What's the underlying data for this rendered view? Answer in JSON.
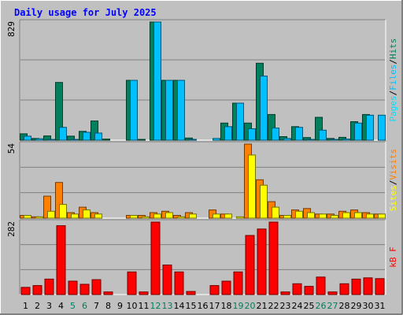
{
  "chart_data": {
    "type": "bar",
    "title": "Daily usage for July 2025",
    "categories": [
      "1",
      "2",
      "3",
      "4",
      "5",
      "6",
      "7",
      "8",
      "9",
      "10",
      "11",
      "12",
      "13",
      "14",
      "15",
      "16",
      "17",
      "18",
      "19",
      "20",
      "21",
      "22",
      "23",
      "24",
      "25",
      "26",
      "27",
      "28",
      "29",
      "30",
      "31"
    ],
    "weekend_days": [
      "5",
      "6",
      "12",
      "13",
      "19",
      "20",
      "26",
      "27"
    ],
    "panels": [
      {
        "id": "top",
        "max_label": "829",
        "ylim": [
          0,
          829
        ],
        "grid": true,
        "legend_vertical": [
          "Pages",
          "/",
          "Files",
          "/",
          "Hits"
        ],
        "series": [
          {
            "name": "Hits",
            "color": "#00805c",
            "values": [
              45,
              12,
              30,
              405,
              28,
              62,
              135,
              8,
              0,
              420,
              5,
              829,
              420,
              420,
              15,
              0,
              0,
              120,
              260,
              120,
              540,
              180,
              25,
              95,
              18,
              160,
              12,
              20,
              130,
              180,
              0
            ]
          },
          {
            "name": "Files",
            "color": "#00c0ff",
            "values": [
              28,
              10,
              5,
              90,
              5,
              55,
              50,
              0,
              0,
              420,
              0,
              829,
              420,
              420,
              5,
              0,
              12,
              95,
              260,
              80,
              450,
              85,
              12,
              90,
              5,
              70,
              5,
              8,
              120,
              175,
              175
            ]
          },
          {
            "name": "Pages",
            "color": "#00e0ff",
            "values": [
              0,
              0,
              0,
              0,
              0,
              0,
              0,
              0,
              0,
              0,
              0,
              0,
              0,
              0,
              0,
              0,
              0,
              0,
              0,
              0,
              0,
              0,
              0,
              0,
              0,
              0,
              0,
              0,
              0,
              0,
              0
            ]
          }
        ]
      },
      {
        "id": "mid",
        "max_label": "54",
        "ylim": [
          0,
          54
        ],
        "grid": true,
        "legend_vertical": [
          "Sites",
          "/",
          "Visits"
        ],
        "series": [
          {
            "name": "Visits",
            "color": "#ff8000",
            "values": [
              2,
              1,
              16,
              26,
              4,
              8,
              4,
              0,
              0,
              2,
              2,
              4,
              5,
              2,
              4,
              0,
              6,
              3,
              0,
              54,
              28,
              12,
              2,
              6,
              7,
              3,
              3,
              5,
              6,
              4,
              3
            ]
          },
          {
            "name": "Sites",
            "color": "#ffff00",
            "values": [
              2,
              1,
              5,
              10,
              3,
              6,
              3,
              0,
              0,
              2,
              1,
              3,
              4,
              1,
              3,
              0,
              3,
              3,
              1,
              46,
              24,
              8,
              2,
              5,
              4,
              3,
              2,
              4,
              4,
              3,
              3
            ]
          }
        ]
      },
      {
        "id": "bottom",
        "max_label": "282",
        "ylim": [
          0,
          282
        ],
        "grid": true,
        "legend_vertical": [
          "kB",
          "F"
        ],
        "series": [
          {
            "name": "kB F",
            "color": "#ff0000",
            "values": [
              28,
              35,
              60,
              268,
              52,
              40,
              58,
              10,
              0,
              88,
              10,
              282,
              115,
              88,
              12,
              0,
              35,
              52,
              88,
              230,
              255,
              282,
              10,
              42,
              32,
              68,
              10,
              42,
              60,
              65,
              62
            ]
          }
        ]
      }
    ],
    "colors": {
      "background": "#c0c0c0",
      "frame": "#808080",
      "title": "#0000ff",
      "pages": "#00e0ff",
      "files": "#00c0ff",
      "hits": "#00805c",
      "sites": "#ffff00",
      "visits": "#ff8000",
      "kbytes": "#ff0000",
      "weekend_label": "#00805c"
    }
  }
}
